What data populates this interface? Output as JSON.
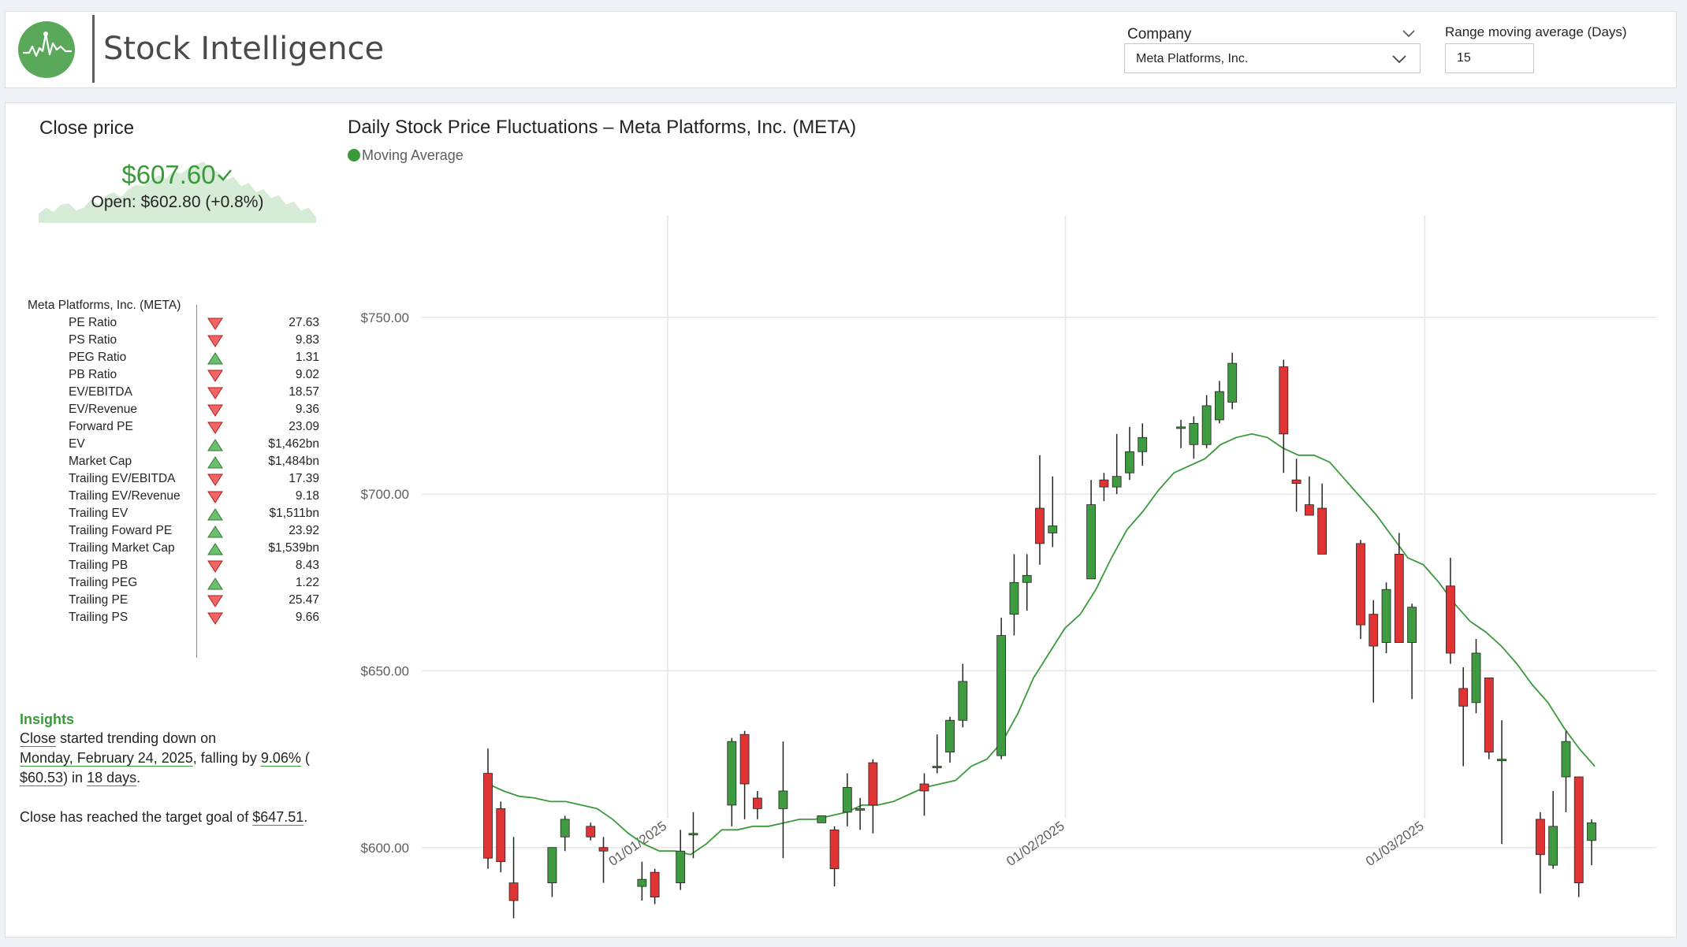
{
  "header": {
    "title": "Stock Intelligence",
    "company_label": "Company",
    "company_value": "Meta Platforms, Inc.",
    "range_label": "Range moving average (Days)",
    "range_value": "15"
  },
  "close_card": {
    "title": "Close price",
    "value": "$607.60",
    "open": "Open: $602.80 (+0.8%)",
    "sparkline": [
      0.15,
      0.25,
      0.18,
      0.3,
      0.32,
      0.2,
      0.25,
      0.38,
      0.3,
      0.45,
      0.5,
      0.42,
      0.55,
      0.62,
      0.6,
      0.7,
      0.78,
      0.72,
      0.85,
      0.8,
      0.9,
      0.95,
      1.0,
      0.88,
      0.82,
      0.7,
      0.75,
      0.6,
      0.65,
      0.5,
      0.55,
      0.4,
      0.45,
      0.3,
      0.35,
      0.2,
      0.25,
      0.1
    ]
  },
  "metrics": {
    "company": "Meta Platforms, Inc. (META)",
    "rows": [
      {
        "name": "PE Ratio",
        "dir": "down",
        "value": "27.63"
      },
      {
        "name": "PS Ratio",
        "dir": "down",
        "value": "9.83"
      },
      {
        "name": "PEG Ratio",
        "dir": "up",
        "value": "1.31"
      },
      {
        "name": "PB Ratio",
        "dir": "down",
        "value": "9.02"
      },
      {
        "name": "EV/EBITDA",
        "dir": "down",
        "value": "18.57"
      },
      {
        "name": "EV/Revenue",
        "dir": "down",
        "value": "9.36"
      },
      {
        "name": "Forward PE",
        "dir": "down",
        "value": "23.09"
      },
      {
        "name": "EV",
        "dir": "up",
        "value": "$1,462bn"
      },
      {
        "name": "Market Cap",
        "dir": "up",
        "value": "$1,484bn"
      },
      {
        "name": "Trailing EV/EBITDA",
        "dir": "down",
        "value": "17.39"
      },
      {
        "name": "Trailing EV/Revenue",
        "dir": "down",
        "value": "9.18"
      },
      {
        "name": "Trailing EV",
        "dir": "up",
        "value": "$1,511bn"
      },
      {
        "name": "Trailing Foward PE",
        "dir": "up",
        "value": "23.92"
      },
      {
        "name": "Trailing Market Cap",
        "dir": "up",
        "value": "$1,539bn"
      },
      {
        "name": "Trailing PB",
        "dir": "down",
        "value": "8.43"
      },
      {
        "name": "Trailing PEG",
        "dir": "up",
        "value": "1.22"
      },
      {
        "name": "Trailing PE",
        "dir": "down",
        "value": "25.47"
      },
      {
        "name": "Trailing PS",
        "dir": "down",
        "value": "9.66"
      }
    ]
  },
  "insights": {
    "title": "Insights",
    "l1a": "Close",
    "l1b": " started trending down on",
    "l2a": "Monday, February 24, 2025",
    "l2b": ", falling by ",
    "l2c": "9.06%",
    "l2d": " (",
    "l3a": "$60.53",
    "l3b": ") in ",
    "l3c": "18 days",
    "l3d": ".",
    "l4a": "Close has reached the target goal of ",
    "l4b": "$647.51",
    "l4c": "."
  },
  "colors": {
    "up": "#3f9b3f",
    "down": "#e03434",
    "ma": "#3a9a3a"
  },
  "chart_data": {
    "type": "candlestick",
    "title": "Daily Stock Price Fluctuations – Meta Platforms, Inc. (META)",
    "legend": [
      "Moving Average"
    ],
    "y_ticks": [
      "$600.00",
      "$650.00",
      "$700.00",
      "$750.00"
    ],
    "x_ticks": [
      "01/01/2025",
      "01/02/2025",
      "01/03/2025"
    ],
    "ylim": [
      581,
      766
    ],
    "candles": [
      {
        "d": "2024-12-18",
        "o": 621,
        "h": 628,
        "l": 594,
        "c": 597
      },
      {
        "d": "2024-12-19",
        "o": 611,
        "h": 613,
        "l": 593,
        "c": 596
      },
      {
        "d": "2024-12-20",
        "o": 590,
        "h": 603,
        "l": 580,
        "c": 585
      },
      {
        "d": "2024-12-23",
        "o": 590,
        "h": 600,
        "l": 586,
        "c": 600
      },
      {
        "d": "2024-12-24",
        "o": 603,
        "h": 609,
        "l": 599,
        "c": 608
      },
      {
        "d": "2024-12-26",
        "o": 606,
        "h": 607,
        "l": 602,
        "c": 603
      },
      {
        "d": "2024-12-27",
        "o": 600,
        "h": 603,
        "l": 590,
        "c": 599
      },
      {
        "d": "2024-12-30",
        "o": 589,
        "h": 596,
        "l": 585,
        "c": 591
      },
      {
        "d": "2024-12-31",
        "o": 593,
        "h": 594,
        "l": 584,
        "c": 586
      },
      {
        "d": "2025-01-02",
        "o": 590,
        "h": 605,
        "l": 588,
        "c": 599
      },
      {
        "d": "2025-01-03",
        "o": 604,
        "h": 610,
        "l": 597,
        "c": 604
      },
      {
        "d": "2025-01-06",
        "o": 612,
        "h": 631,
        "l": 606,
        "c": 630
      },
      {
        "d": "2025-01-07",
        "o": 632,
        "h": 633,
        "l": 608,
        "c": 618
      },
      {
        "d": "2025-01-08",
        "o": 614,
        "h": 616,
        "l": 608,
        "c": 611
      },
      {
        "d": "2025-01-10",
        "o": 611,
        "h": 630,
        "l": 597,
        "c": 616
      },
      {
        "d": "2025-01-13",
        "o": 607,
        "h": 609,
        "l": 607,
        "c": 609
      },
      {
        "d": "2025-01-14",
        "o": 605,
        "h": 606,
        "l": 589,
        "c": 594
      },
      {
        "d": "2025-01-15",
        "o": 610,
        "h": 621,
        "l": 606,
        "c": 617
      },
      {
        "d": "2025-01-16",
        "o": 611,
        "h": 614,
        "l": 605,
        "c": 611
      },
      {
        "d": "2025-01-17",
        "o": 624,
        "h": 625,
        "l": 604,
        "c": 612
      },
      {
        "d": "2025-01-21",
        "o": 618,
        "h": 621,
        "l": 609,
        "c": 616
      },
      {
        "d": "2025-01-22",
        "o": 623,
        "h": 632,
        "l": 621,
        "c": 623
      },
      {
        "d": "2025-01-23",
        "o": 627,
        "h": 637,
        "l": 624,
        "c": 636
      },
      {
        "d": "2025-01-24",
        "o": 636,
        "h": 652,
        "l": 634,
        "c": 647
      },
      {
        "d": "2025-01-27",
        "o": 626,
        "h": 665,
        "l": 625,
        "c": 660
      },
      {
        "d": "2025-01-28",
        "o": 666,
        "h": 683,
        "l": 660,
        "c": 675
      },
      {
        "d": "2025-01-29",
        "o": 675,
        "h": 683,
        "l": 667,
        "c": 677
      },
      {
        "d": "2025-01-30",
        "o": 696,
        "h": 711,
        "l": 680,
        "c": 686
      },
      {
        "d": "2025-01-31",
        "o": 689,
        "h": 705,
        "l": 685,
        "c": 691
      },
      {
        "d": "2025-02-03",
        "o": 676,
        "h": 704,
        "l": 676,
        "c": 697
      },
      {
        "d": "2025-02-04",
        "o": 704,
        "h": 706,
        "l": 698,
        "c": 702
      },
      {
        "d": "2025-02-05",
        "o": 702,
        "h": 717,
        "l": 700,
        "c": 705
      },
      {
        "d": "2025-02-06",
        "o": 706,
        "h": 719,
        "l": 704,
        "c": 712
      },
      {
        "d": "2025-02-07",
        "o": 712,
        "h": 720,
        "l": 708,
        "c": 716
      },
      {
        "d": "2025-02-10",
        "o": 719,
        "h": 721,
        "l": 713,
        "c": 719
      },
      {
        "d": "2025-02-11",
        "o": 714,
        "h": 722,
        "l": 710,
        "c": 720
      },
      {
        "d": "2025-02-12",
        "o": 714,
        "h": 728,
        "l": 713,
        "c": 725
      },
      {
        "d": "2025-02-13",
        "o": 721,
        "h": 732,
        "l": 720,
        "c": 729
      },
      {
        "d": "2025-02-14",
        "o": 726,
        "h": 740,
        "l": 724,
        "c": 737
      },
      {
        "d": "2025-02-18",
        "o": 736,
        "h": 738,
        "l": 706,
        "c": 717
      },
      {
        "d": "2025-02-19",
        "o": 704,
        "h": 710,
        "l": 695,
        "c": 703
      },
      {
        "d": "2025-02-20",
        "o": 697,
        "h": 705,
        "l": 694,
        "c": 694
      },
      {
        "d": "2025-02-21",
        "o": 696,
        "h": 703,
        "l": 683,
        "c": 683
      },
      {
        "d": "2025-02-24",
        "o": 686,
        "h": 687,
        "l": 659,
        "c": 663
      },
      {
        "d": "2025-02-25",
        "o": 666,
        "h": 670,
        "l": 641,
        "c": 657
      },
      {
        "d": "2025-02-26",
        "o": 658,
        "h": 675,
        "l": 655,
        "c": 673
      },
      {
        "d": "2025-02-27",
        "o": 683,
        "h": 689,
        "l": 658,
        "c": 658
      },
      {
        "d": "2025-02-28",
        "o": 658,
        "h": 669,
        "l": 642,
        "c": 668
      },
      {
        "d": "2025-03-03",
        "o": 674,
        "h": 682,
        "l": 652,
        "c": 655
      },
      {
        "d": "2025-03-04",
        "o": 645,
        "h": 651,
        "l": 623,
        "c": 640
      },
      {
        "d": "2025-03-05",
        "o": 641,
        "h": 659,
        "l": 638,
        "c": 655
      },
      {
        "d": "2025-03-06",
        "o": 648,
        "h": 648,
        "l": 625,
        "c": 627
      },
      {
        "d": "2025-03-07",
        "o": 625,
        "h": 636,
        "l": 601,
        "c": 625
      },
      {
        "d": "2025-03-10",
        "o": 608,
        "h": 610,
        "l": 587,
        "c": 598
      },
      {
        "d": "2025-03-11",
        "o": 595,
        "h": 616,
        "l": 594,
        "c": 606
      },
      {
        "d": "2025-03-12",
        "o": 620,
        "h": 633,
        "l": 610,
        "c": 630
      },
      {
        "d": "2025-03-13",
        "o": 620,
        "h": 620,
        "l": 586,
        "c": 590
      },
      {
        "d": "2025-03-14",
        "o": 602,
        "h": 608,
        "l": 595,
        "c": 607
      }
    ],
    "moving_average": [
      618,
      616,
      614.5,
      614,
      613,
      613,
      612,
      611,
      608,
      604,
      601,
      599,
      599,
      598,
      601,
      605,
      605,
      606,
      606,
      607,
      608,
      608,
      609,
      610,
      612,
      612,
      613,
      615,
      617,
      618,
      619,
      623,
      625,
      630,
      638,
      648,
      655,
      662,
      666,
      673,
      682,
      690,
      695,
      701,
      706,
      708,
      710,
      714,
      716,
      717,
      716,
      713,
      711,
      711,
      709,
      704,
      699,
      694,
      688,
      682,
      680,
      675,
      669,
      664,
      661,
      657,
      652,
      646,
      641,
      634,
      628,
      623
    ]
  }
}
